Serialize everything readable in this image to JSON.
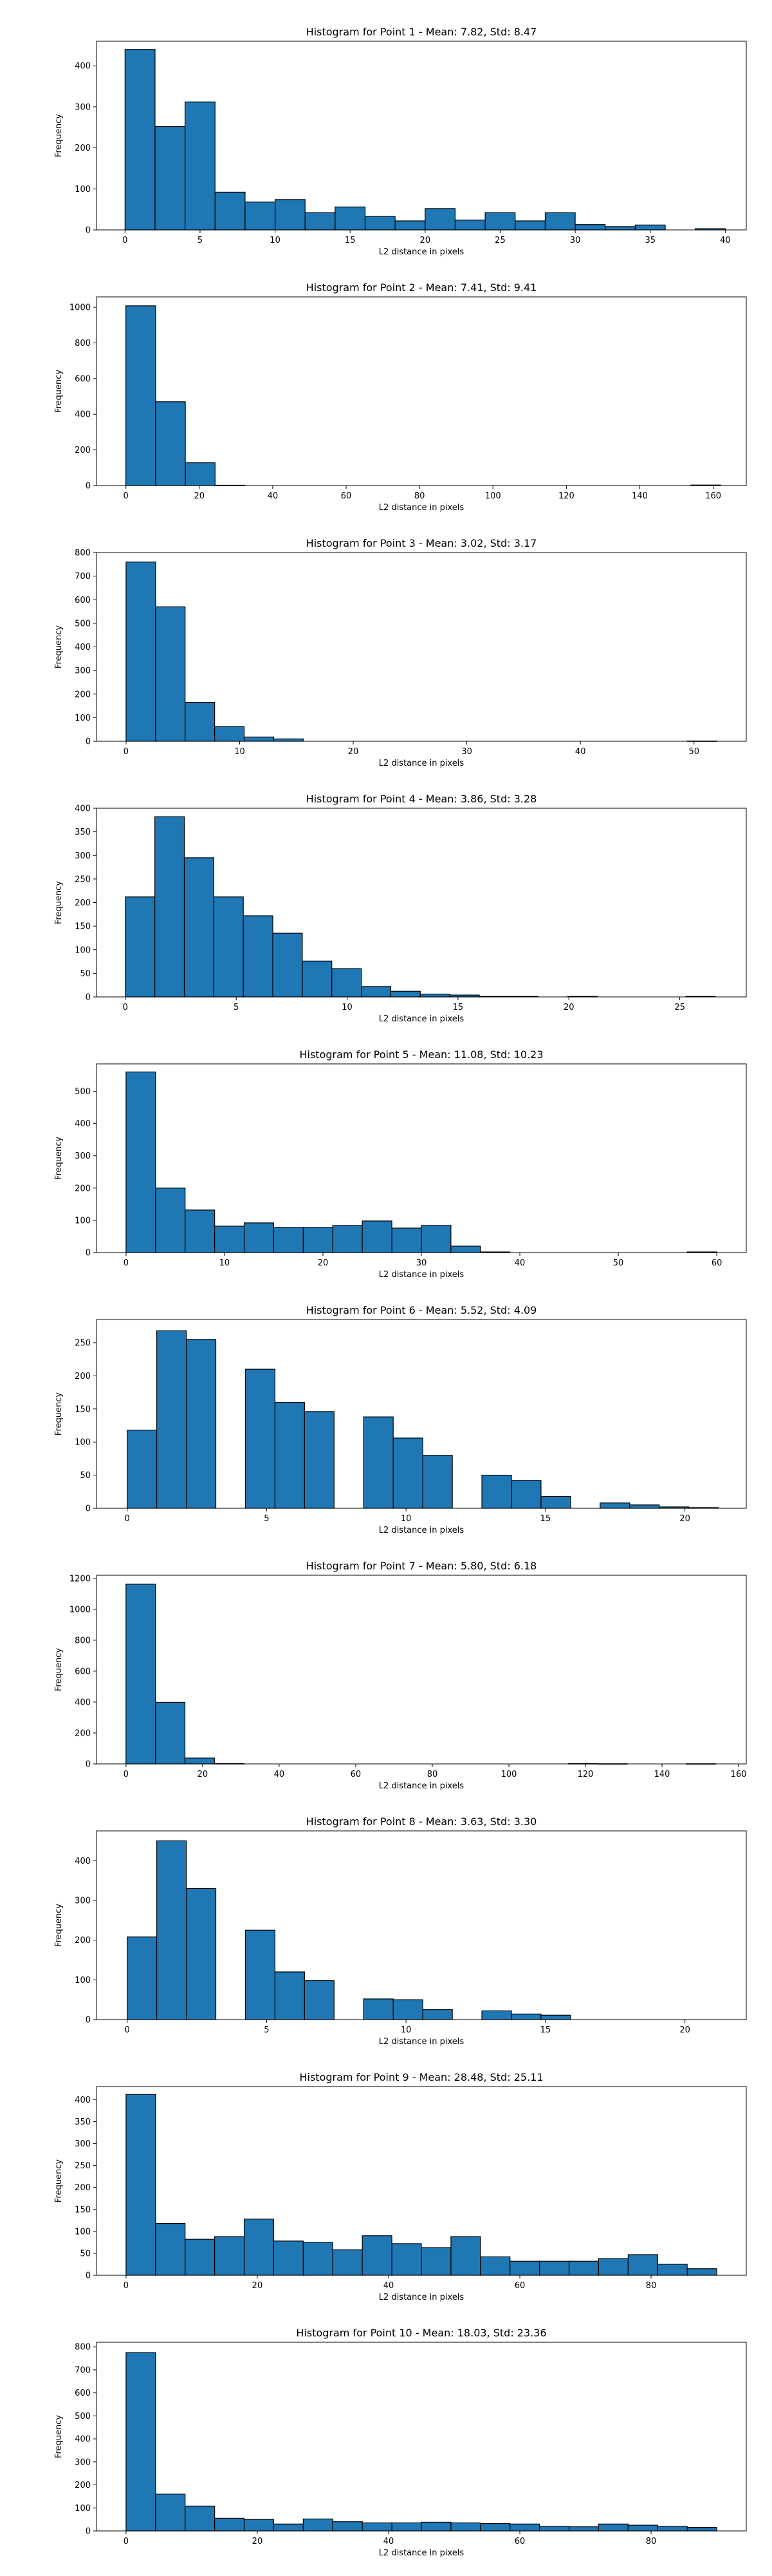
{
  "chart_data": [
    {
      "type": "bar",
      "title": "Histogram for Point 1 - Mean: 7.82, Std: 8.47",
      "xlabel": "L2 distance in pixels",
      "ylabel": "Frequency",
      "color": "#1f77b4",
      "xlim": [
        -1.9,
        41.4
      ],
      "ylim": [
        0,
        460
      ],
      "xticks": [
        0,
        5,
        10,
        15,
        20,
        25,
        30,
        35,
        40
      ],
      "yticks": [
        0,
        100,
        200,
        300,
        400
      ],
      "bin_start": 0,
      "bin_width": 2.0,
      "values": [
        440,
        252,
        312,
        92,
        68,
        74,
        42,
        56,
        33,
        22,
        52,
        24,
        42,
        22,
        42,
        13,
        8,
        12,
        0,
        3
      ]
    },
    {
      "type": "bar",
      "title": "Histogram for Point 2 - Mean: 7.41, Std: 9.41",
      "xlabel": "L2 distance in pixels",
      "ylabel": "Frequency",
      "color": "#1f77b4",
      "xlim": [
        -8,
        169
      ],
      "ylim": [
        0,
        1058
      ],
      "xticks": [
        0,
        20,
        40,
        60,
        80,
        100,
        120,
        140,
        160
      ],
      "yticks": [
        0,
        200,
        400,
        600,
        800,
        1000
      ],
      "bin_start": 0,
      "bin_width": 8.1,
      "values": [
        1008,
        470,
        128,
        2,
        0,
        0,
        0,
        0,
        0,
        0,
        0,
        0,
        0,
        0,
        0,
        0,
        0,
        0,
        0,
        3
      ]
    },
    {
      "type": "bar",
      "title": "Histogram for Point 3 - Mean: 3.02, Std: 3.17",
      "xlabel": "L2 distance in pixels",
      "ylabel": "Frequency",
      "color": "#1f77b4",
      "xlim": [
        -2.6,
        54.6
      ],
      "ylim": [
        0,
        800
      ],
      "xticks": [
        0,
        10,
        20,
        30,
        40,
        50
      ],
      "yticks": [
        0,
        100,
        200,
        300,
        400,
        500,
        600,
        700,
        800
      ],
      "bin_start": 0,
      "bin_width": 2.6,
      "values": [
        760,
        570,
        165,
        62,
        18,
        10,
        0,
        0,
        0,
        0,
        0,
        0,
        0,
        0,
        0,
        0,
        0,
        0,
        0,
        1
      ]
    },
    {
      "type": "bar",
      "title": "Histogram for Point 4 - Mean: 3.86, Std: 3.28",
      "xlabel": "L2 distance in pixels",
      "ylabel": "Frequency",
      "color": "#1f77b4",
      "xlim": [
        -1.3,
        28.0
      ],
      "ylim": [
        0,
        400
      ],
      "xticks": [
        0,
        5,
        10,
        15,
        20,
        25
      ],
      "yticks": [
        0,
        50,
        100,
        150,
        200,
        250,
        300,
        350,
        400
      ],
      "bin_start": 0,
      "bin_width": 1.33,
      "values": [
        212,
        382,
        295,
        212,
        172,
        135,
        76,
        60,
        22,
        12,
        6,
        4,
        1,
        1,
        0,
        1,
        0,
        0,
        0,
        1
      ]
    },
    {
      "type": "bar",
      "title": "Histogram for Point 5 - Mean: 11.08, Std: 10.23",
      "xlabel": "L2 distance in pixels",
      "ylabel": "Frequency",
      "color": "#1f77b4",
      "xlim": [
        -3,
        63
      ],
      "ylim": [
        0,
        585
      ],
      "xticks": [
        0,
        10,
        20,
        30,
        40,
        50,
        60
      ],
      "yticks": [
        0,
        100,
        200,
        300,
        400,
        500
      ],
      "bin_start": 0,
      "bin_width": 3.0,
      "values": [
        560,
        200,
        132,
        82,
        92,
        78,
        78,
        84,
        98,
        76,
        84,
        20,
        2,
        0,
        0,
        0,
        0,
        0,
        0,
        2
      ]
    },
    {
      "type": "bar",
      "title": "Histogram for Point 6 - Mean: 5.52, Std: 4.09",
      "xlabel": "L2 distance in pixels",
      "ylabel": "Frequency",
      "color": "#1f77b4",
      "xlim": [
        -1.1,
        22.2
      ],
      "ylim": [
        0,
        285
      ],
      "xticks": [
        0,
        5,
        10,
        15,
        20
      ],
      "yticks": [
        0,
        50,
        100,
        150,
        200,
        250
      ],
      "bin_start": 0,
      "bin_width": 1.06,
      "values": [
        118,
        268,
        255,
        0,
        210,
        160,
        146,
        0,
        138,
        106,
        80,
        0,
        50,
        42,
        18,
        0,
        8,
        5,
        2,
        1
      ]
    },
    {
      "type": "bar",
      "title": "Histogram for Point 7 - Mean: 5.80, Std: 6.18",
      "xlabel": "L2 distance in pixels",
      "ylabel": "Frequency",
      "color": "#1f77b4",
      "xlim": [
        -7.7,
        162
      ],
      "ylim": [
        0,
        1220
      ],
      "xticks": [
        0,
        20,
        40,
        60,
        80,
        100,
        120,
        140,
        160
      ],
      "yticks": [
        0,
        200,
        400,
        600,
        800,
        1000,
        1200
      ],
      "bin_start": 0,
      "bin_width": 7.7,
      "values": [
        1162,
        398,
        38,
        2,
        0,
        0,
        0,
        0,
        0,
        0,
        0,
        0,
        0,
        0,
        0,
        2,
        1,
        0,
        0,
        1
      ]
    },
    {
      "type": "bar",
      "title": "Histogram for Point 8 - Mean: 3.63, Std: 3.30",
      "xlabel": "L2 distance in pixels",
      "ylabel": "Frequency",
      "color": "#1f77b4",
      "xlim": [
        -1.1,
        22.2
      ],
      "ylim": [
        0,
        475
      ],
      "xticks": [
        0,
        5,
        10,
        15,
        20
      ],
      "yticks": [
        0,
        100,
        200,
        300,
        400
      ],
      "bin_start": 0,
      "bin_width": 1.06,
      "values": [
        208,
        450,
        330,
        0,
        225,
        120,
        98,
        0,
        52,
        50,
        25,
        0,
        22,
        14,
        11,
        0,
        0,
        0,
        0,
        0
      ]
    },
    {
      "type": "bar",
      "title": "Histogram for Point 9 - Mean: 28.48, Std: 25.11",
      "xlabel": "L2 distance in pixels",
      "ylabel": "Frequency",
      "color": "#1f77b4",
      "xlim": [
        -4.5,
        94.5
      ],
      "ylim": [
        0,
        430
      ],
      "xticks": [
        0,
        20,
        40,
        60,
        80
      ],
      "yticks": [
        0,
        50,
        100,
        150,
        200,
        250,
        300,
        350,
        400
      ],
      "bin_start": 0,
      "bin_width": 4.5,
      "values": [
        412,
        118,
        82,
        88,
        128,
        78,
        75,
        58,
        90,
        72,
        63,
        88,
        42,
        32,
        32,
        32,
        38,
        47,
        25,
        15
      ]
    },
    {
      "type": "bar",
      "title": "Histogram for Point 10 - Mean: 18.03, Std: 23.36",
      "xlabel": "L2 distance in pixels",
      "ylabel": "Frequency",
      "color": "#1f77b4",
      "xlim": [
        -4.5,
        94.5
      ],
      "ylim": [
        0,
        820
      ],
      "xticks": [
        0,
        20,
        40,
        60,
        80
      ],
      "yticks": [
        0,
        100,
        200,
        300,
        400,
        500,
        600,
        700,
        800
      ],
      "bin_start": 0,
      "bin_width": 4.5,
      "values": [
        775,
        160,
        108,
        55,
        50,
        30,
        52,
        40,
        35,
        35,
        38,
        35,
        32,
        30,
        20,
        18,
        30,
        25,
        20,
        15
      ]
    }
  ]
}
